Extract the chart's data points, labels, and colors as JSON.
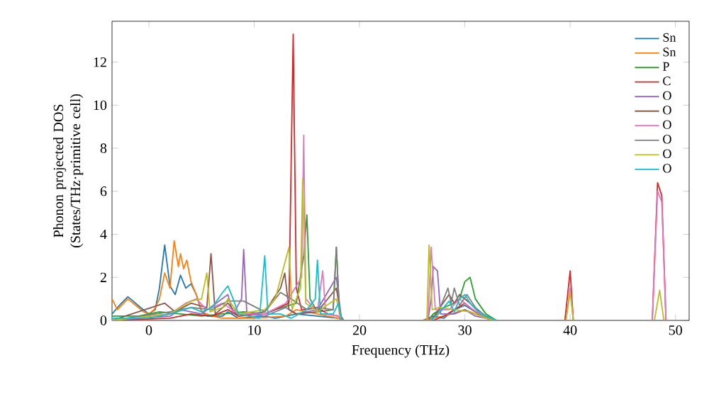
{
  "chart_data": {
    "type": "line",
    "xlabel": "Frequency (THz)",
    "ylabel": "Phonon projected DOS (States/THz·primitive cell)",
    "xlim": [
      -3.5,
      51.3
    ],
    "ylim": [
      0,
      13.9
    ],
    "xticks": [
      0,
      10,
      20,
      30,
      40,
      50
    ],
    "yticks": [
      0,
      2,
      4,
      6,
      8,
      10,
      12
    ],
    "legend": "top right",
    "series": [
      {
        "name": "Sn",
        "color": "#1f77b4",
        "x": [
          -3.5,
          -2.8,
          -2.0,
          -1.5,
          -0.8,
          0,
          0.6,
          1.0,
          1.5,
          2.0,
          2.5,
          3.0,
          3.5,
          4.0,
          4.5,
          5.0,
          5.5,
          7.0,
          7.5,
          8.5,
          11,
          12,
          14,
          16,
          18,
          18.5,
          26,
          27,
          28,
          29,
          30,
          31,
          32,
          33,
          51
        ],
        "values": [
          0.3,
          0.7,
          1.1,
          0.9,
          0.6,
          0.3,
          0.5,
          1.5,
          3.5,
          1.6,
          1.2,
          2.1,
          1.5,
          1.7,
          1.2,
          0.4,
          0.2,
          0.2,
          0.4,
          0.1,
          0.2,
          0.1,
          0.3,
          0.2,
          0.1,
          0,
          0,
          0.2,
          0.1,
          0.5,
          0.7,
          0.4,
          0.1,
          0,
          0
        ]
      },
      {
        "name": "Sn",
        "color": "#ff7f0e",
        "x": [
          -3.5,
          -3.0,
          -2,
          -1.5,
          -0.5,
          0,
          0.5,
          1,
          1.5,
          2.0,
          2.4,
          2.8,
          3.0,
          3.3,
          3.6,
          4.0,
          4.5,
          5.0,
          6,
          7,
          10,
          13,
          14,
          16,
          18,
          18.5,
          26,
          28,
          30,
          31,
          33,
          51
        ],
        "values": [
          1.0,
          0.5,
          1.0,
          0.8,
          0.4,
          0.3,
          0.5,
          1.0,
          2.2,
          1.5,
          3.7,
          2.5,
          3.1,
          2.4,
          2.8,
          1.8,
          1.2,
          0.4,
          0.2,
          0.1,
          0.1,
          0.2,
          0.5,
          0.3,
          0.1,
          0,
          0,
          0.2,
          0.5,
          0.3,
          0,
          0
        ]
      },
      {
        "name": "P",
        "color": "#2ca02c",
        "x": [
          -3.5,
          -1,
          1,
          3,
          5,
          7,
          9,
          11,
          12,
          14,
          14.7,
          15.0,
          15.3,
          16,
          17.5,
          17.8,
          18.1,
          18.5,
          26.5,
          27,
          28,
          29,
          29.5,
          30,
          30.5,
          31,
          32,
          33,
          51
        ],
        "values": [
          0.2,
          0.2,
          0.4,
          0.3,
          0.2,
          0.3,
          0.4,
          0.3,
          0.5,
          0.8,
          3.0,
          4.9,
          1.0,
          0.4,
          0.5,
          3.4,
          0.3,
          0,
          0,
          0.3,
          0.6,
          0.8,
          1.0,
          1.8,
          2.0,
          1.0,
          0.3,
          0,
          0
        ]
      },
      {
        "name": "C",
        "color": "#d62728",
        "x": [
          -3.5,
          2,
          4,
          6,
          7.5,
          8.5,
          11,
          13.3,
          13.7,
          14.0,
          14.5,
          16,
          17,
          18,
          18.5,
          27,
          28,
          29,
          30,
          31,
          32,
          33,
          39.5,
          40,
          40.3,
          47.8,
          48.3,
          48.7,
          49.1,
          51
        ],
        "values": [
          0,
          0.1,
          0.3,
          0.2,
          0.5,
          0.2,
          0.3,
          0.8,
          13.3,
          1.5,
          0.5,
          0.6,
          0.3,
          0.2,
          0,
          0,
          0.2,
          0.5,
          0.8,
          0.4,
          0.1,
          0,
          0,
          2.3,
          0,
          0,
          6.4,
          5.8,
          0,
          0
        ]
      },
      {
        "name": "O",
        "color": "#9467bd",
        "x": [
          -3.5,
          2,
          3,
          5,
          7.5,
          8,
          8.8,
          9.0,
          9.3,
          11,
          13,
          14,
          16,
          17.8,
          18.3,
          26.5,
          26.8,
          27.0,
          27.4,
          27.7,
          29,
          30,
          31,
          33,
          51
        ],
        "values": [
          0,
          0.2,
          0.5,
          0.3,
          1.2,
          0.3,
          1.0,
          3.3,
          0.3,
          0.2,
          0.6,
          0.3,
          0.5,
          2.0,
          0,
          0,
          1.0,
          2.5,
          2.3,
          0.3,
          0.3,
          0.5,
          0.2,
          0,
          0
        ]
      },
      {
        "name": "O",
        "color": "#8c564b",
        "x": [
          -3.5,
          1.5,
          2.5,
          4,
          5.5,
          5.9,
          6.3,
          7.5,
          8.5,
          11,
          12.5,
          12.9,
          13.3,
          14,
          16,
          17.8,
          18.3,
          26.8,
          27.5,
          28.5,
          29,
          29.5,
          30.5,
          31.5,
          32.5,
          33,
          51
        ],
        "values": [
          0,
          0.8,
          0.4,
          0.8,
          0.6,
          3.1,
          0.3,
          0.8,
          0.2,
          0.4,
          1.5,
          2.2,
          0.5,
          0.3,
          0.4,
          1.5,
          0,
          0,
          0.5,
          1.2,
          0.8,
          1.2,
          0.8,
          0.3,
          0.1,
          0,
          0
        ]
      },
      {
        "name": "O",
        "color": "#e377c2",
        "x": [
          -3.5,
          2,
          3.5,
          4.5,
          5.5,
          7,
          8.5,
          11,
          13,
          14.5,
          14.7,
          14.9,
          16,
          16.5,
          16.8,
          18,
          18.5,
          26.5,
          26.8,
          27.2,
          28.5,
          29.5,
          30.5,
          32,
          33,
          39.6,
          40.0,
          40.3,
          47.8,
          48.3,
          48.7,
          49.1,
          51
        ],
        "values": [
          0,
          0.3,
          0.8,
          1.0,
          0.5,
          0.8,
          0.3,
          0.3,
          0.8,
          2.0,
          8.6,
          1.0,
          0.4,
          2.3,
          0.3,
          0.2,
          0,
          0,
          3.4,
          0.5,
          0.5,
          1.0,
          0.6,
          0.1,
          0,
          0,
          1.5,
          0,
          0,
          6.0,
          5.5,
          0,
          0
        ]
      },
      {
        "name": "O",
        "color": "#7f7f7f",
        "x": [
          -3.5,
          2,
          4,
          6,
          7.5,
          9,
          11,
          12.5,
          13.5,
          15,
          16,
          17.5,
          17.8,
          18.1,
          18.5,
          26.8,
          27.5,
          28.4,
          28.7,
          29.0,
          29.5,
          30.2,
          31,
          32,
          33,
          51
        ],
        "values": [
          0,
          0.4,
          0.6,
          0.5,
          0.9,
          0.9,
          0.4,
          1.3,
          1.0,
          0.5,
          0.6,
          0.5,
          3.4,
          0.3,
          0,
          0,
          0.4,
          1.5,
          0.8,
          1.5,
          0.7,
          1.2,
          0.6,
          0.2,
          0,
          0
        ]
      },
      {
        "name": "O",
        "color": "#bcbd22",
        "x": [
          -3.5,
          2,
          3,
          4,
          5,
          5.5,
          5.8,
          7,
          7.5,
          8.5,
          11,
          12,
          13.3,
          13.6,
          14.4,
          14.6,
          14.9,
          16,
          17.8,
          18.3,
          26.4,
          26.6,
          26.9,
          27.5,
          29,
          30.5,
          32,
          33,
          39.6,
          40,
          40.3,
          48,
          48.5,
          48.9,
          51
        ],
        "values": [
          0,
          0.3,
          0.6,
          0.9,
          1.0,
          2.2,
          0.4,
          0.6,
          1.0,
          0.3,
          0.5,
          1.0,
          3.4,
          0.5,
          1.5,
          6.6,
          0.8,
          0.4,
          1.0,
          0,
          0,
          3.5,
          0.5,
          0.6,
          0.5,
          0.4,
          0.1,
          0,
          0,
          1.3,
          0,
          0,
          1.4,
          0,
          0
        ]
      },
      {
        "name": "O",
        "color": "#17becf",
        "x": [
          -3.5,
          0,
          2,
          4,
          5,
          6,
          7.0,
          7.5,
          8,
          8.5,
          10.5,
          11.0,
          11.3,
          12.5,
          13.5,
          15.0,
          15.8,
          16.0,
          16.3,
          17.5,
          18.0,
          18.3,
          26.8,
          27.5,
          28.5,
          29.0,
          29.5,
          30.0,
          30.5,
          31.5,
          32.5,
          33,
          51
        ],
        "values": [
          0.1,
          0.1,
          0.3,
          0.6,
          0.4,
          0.6,
          1.3,
          1.6,
          1.0,
          0.3,
          0.1,
          3.0,
          0.3,
          0.3,
          0.1,
          0.5,
          1.0,
          2.8,
          0.3,
          0.3,
          0.8,
          0,
          0,
          0.3,
          0.9,
          0.4,
          1.0,
          1.2,
          0.8,
          0.3,
          0.1,
          0,
          0
        ]
      }
    ]
  }
}
